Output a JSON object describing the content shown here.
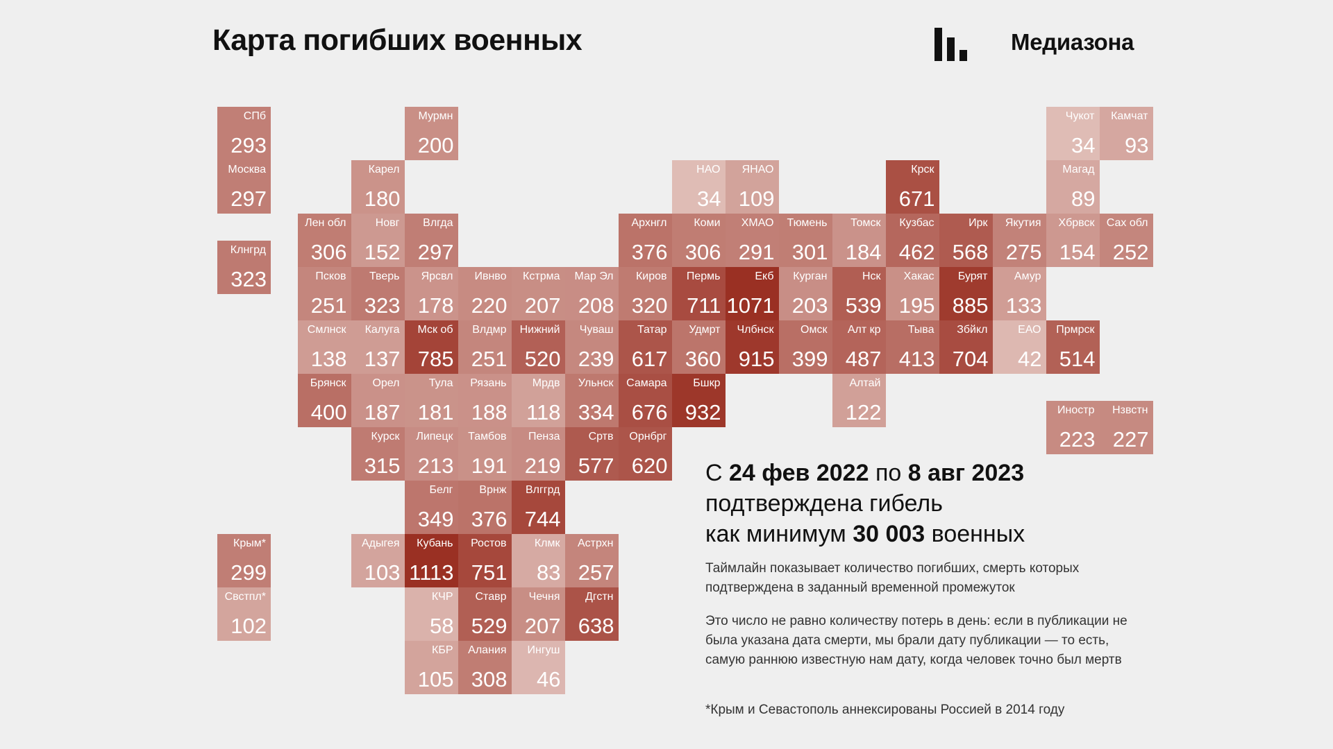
{
  "header": {
    "title": "Карта погибших военных",
    "brand": "Медиазона"
  },
  "summary": {
    "prefix": "С",
    "date_from": "24 фев 2022",
    "mid": "по",
    "date_to": "8 авг 2023",
    "line2": "подтверждена гибель",
    "line3_prefix": "как минимум",
    "total": "30 003",
    "line3_suffix": "военных"
  },
  "notes": {
    "timeline": "Таймлайн показывает количество погибших, смерть которых подтверждена в заданный временной промежуток",
    "explanation": "Это число не равно количеству потерь в день: если в публикации не была указана дата смерти, мы брали дату публикации — то есть, самую раннюю известную нам дату, когда человек точно был мертв",
    "footnote": "*Крым и Севастополь аннексированы Россией в 2014 году"
  },
  "colors": {
    "min": "#eedbd6",
    "max": "#9a3023",
    "text": "#ffffff"
  },
  "regions": [
    {
      "label": "СПб",
      "value": 293,
      "col": 0,
      "row": 0
    },
    {
      "label": "Москва",
      "value": 297,
      "col": 0,
      "row": 1
    },
    {
      "label": "Клнгрд",
      "value": 323,
      "col": 0,
      "row": 2.5
    },
    {
      "label": "Крым*",
      "value": 299,
      "col": 0,
      "row": 8
    },
    {
      "label": "Свстпл*",
      "value": 102,
      "col": 0,
      "row": 9
    },
    {
      "label": "Мурмн",
      "value": 200,
      "col": 3.5,
      "row": 0
    },
    {
      "label": "Карел",
      "value": 180,
      "col": 2.5,
      "row": 1
    },
    {
      "label": "Лен обл",
      "value": 306,
      "col": 1.5,
      "row": 2
    },
    {
      "label": "Новг",
      "value": 152,
      "col": 2.5,
      "row": 2
    },
    {
      "label": "Влгда",
      "value": 297,
      "col": 3.5,
      "row": 2
    },
    {
      "label": "Псков",
      "value": 251,
      "col": 1.5,
      "row": 3
    },
    {
      "label": "Тверь",
      "value": 323,
      "col": 2.5,
      "row": 3
    },
    {
      "label": "Ярсвл",
      "value": 178,
      "col": 3.5,
      "row": 3
    },
    {
      "label": "Ивнво",
      "value": 220,
      "col": 4.5,
      "row": 3
    },
    {
      "label": "Кстрма",
      "value": 207,
      "col": 5.5,
      "row": 3
    },
    {
      "label": "Мар Эл",
      "value": 208,
      "col": 6.5,
      "row": 3
    },
    {
      "label": "Смлнск",
      "value": 138,
      "col": 1.5,
      "row": 4
    },
    {
      "label": "Калуга",
      "value": 137,
      "col": 2.5,
      "row": 4
    },
    {
      "label": "Мск об",
      "value": 785,
      "col": 3.5,
      "row": 4
    },
    {
      "label": "Влдмр",
      "value": 251,
      "col": 4.5,
      "row": 4
    },
    {
      "label": "Нижний",
      "value": 520,
      "col": 5.5,
      "row": 4
    },
    {
      "label": "Чуваш",
      "value": 239,
      "col": 6.5,
      "row": 4
    },
    {
      "label": "Брянск",
      "value": 400,
      "col": 1.5,
      "row": 5
    },
    {
      "label": "Орел",
      "value": 187,
      "col": 2.5,
      "row": 5
    },
    {
      "label": "Тула",
      "value": 181,
      "col": 3.5,
      "row": 5
    },
    {
      "label": "Рязань",
      "value": 188,
      "col": 4.5,
      "row": 5
    },
    {
      "label": "Мрдв",
      "value": 118,
      "col": 5.5,
      "row": 5
    },
    {
      "label": "Ульнск",
      "value": 334,
      "col": 6.5,
      "row": 5
    },
    {
      "label": "Курск",
      "value": 315,
      "col": 2.5,
      "row": 6
    },
    {
      "label": "Липецк",
      "value": 213,
      "col": 3.5,
      "row": 6
    },
    {
      "label": "Тамбов",
      "value": 191,
      "col": 4.5,
      "row": 6
    },
    {
      "label": "Пенза",
      "value": 219,
      "col": 5.5,
      "row": 6
    },
    {
      "label": "Сртв",
      "value": 577,
      "col": 6.5,
      "row": 6
    },
    {
      "label": "Орнбрг",
      "value": 620,
      "col": 7.5,
      "row": 6
    },
    {
      "label": "Белг",
      "value": 349,
      "col": 3.5,
      "row": 7
    },
    {
      "label": "Врнж",
      "value": 376,
      "col": 4.5,
      "row": 7
    },
    {
      "label": "Влггрд",
      "value": 744,
      "col": 5.5,
      "row": 7
    },
    {
      "label": "Адыгея",
      "value": 103,
      "col": 2.5,
      "row": 8
    },
    {
      "label": "Кубань",
      "value": 1113,
      "col": 3.5,
      "row": 8
    },
    {
      "label": "Ростов",
      "value": 751,
      "col": 4.5,
      "row": 8
    },
    {
      "label": "Клмк",
      "value": 83,
      "col": 5.5,
      "row": 8
    },
    {
      "label": "Астрхн",
      "value": 257,
      "col": 6.5,
      "row": 8
    },
    {
      "label": "КЧР",
      "value": 58,
      "col": 3.5,
      "row": 9
    },
    {
      "label": "Ставр",
      "value": 529,
      "col": 4.5,
      "row": 9
    },
    {
      "label": "Чечня",
      "value": 207,
      "col": 5.5,
      "row": 9
    },
    {
      "label": "Дгстн",
      "value": 638,
      "col": 6.5,
      "row": 9
    },
    {
      "label": "КБР",
      "value": 105,
      "col": 3.5,
      "row": 10
    },
    {
      "label": "Алания",
      "value": 308,
      "col": 4.5,
      "row": 10
    },
    {
      "label": "Ингуш",
      "value": 46,
      "col": 5.5,
      "row": 10
    },
    {
      "label": "Архнгл",
      "value": 376,
      "col": 7.5,
      "row": 2
    },
    {
      "label": "Киров",
      "value": 320,
      "col": 7.5,
      "row": 3
    },
    {
      "label": "Татар",
      "value": 617,
      "col": 7.5,
      "row": 4
    },
    {
      "label": "Самара",
      "value": 676,
      "col": 7.5,
      "row": 5
    },
    {
      "label": "НАО",
      "value": 34,
      "col": 8.5,
      "row": 1
    },
    {
      "label": "Коми",
      "value": 306,
      "col": 8.5,
      "row": 2
    },
    {
      "label": "Пермь",
      "value": 711,
      "col": 8.5,
      "row": 3
    },
    {
      "label": "Удмрт",
      "value": 360,
      "col": 8.5,
      "row": 4
    },
    {
      "label": "Бшкр",
      "value": 932,
      "col": 8.5,
      "row": 5
    },
    {
      "label": "ЯНАО",
      "value": 109,
      "col": 9.5,
      "row": 1
    },
    {
      "label": "ХМАО",
      "value": 291,
      "col": 9.5,
      "row": 2
    },
    {
      "label": "Екб",
      "value": 1071,
      "col": 9.5,
      "row": 3
    },
    {
      "label": "Члбнск",
      "value": 915,
      "col": 9.5,
      "row": 4
    },
    {
      "label": "Тюмень",
      "value": 301,
      "col": 10.5,
      "row": 2
    },
    {
      "label": "Курган",
      "value": 203,
      "col": 10.5,
      "row": 3
    },
    {
      "label": "Омск",
      "value": 399,
      "col": 10.5,
      "row": 4
    },
    {
      "label": "Томск",
      "value": 184,
      "col": 11.5,
      "row": 2
    },
    {
      "label": "Нск",
      "value": 539,
      "col": 11.5,
      "row": 3
    },
    {
      "label": "Алт кр",
      "value": 487,
      "col": 11.5,
      "row": 4
    },
    {
      "label": "Алтай",
      "value": 122,
      "col": 11.5,
      "row": 5
    },
    {
      "label": "Крск",
      "value": 671,
      "col": 12.5,
      "row": 1
    },
    {
      "label": "Кузбас",
      "value": 462,
      "col": 12.5,
      "row": 2
    },
    {
      "label": "Хакас",
      "value": 195,
      "col": 12.5,
      "row": 3
    },
    {
      "label": "Тыва",
      "value": 413,
      "col": 12.5,
      "row": 4
    },
    {
      "label": "Ирк",
      "value": 568,
      "col": 13.5,
      "row": 2
    },
    {
      "label": "Бурят",
      "value": 885,
      "col": 13.5,
      "row": 3
    },
    {
      "label": "Збйкл",
      "value": 704,
      "col": 13.5,
      "row": 4
    },
    {
      "label": "Якутия",
      "value": 275,
      "col": 14.5,
      "row": 2
    },
    {
      "label": "Амур",
      "value": 133,
      "col": 14.5,
      "row": 3
    },
    {
      "label": "ЕАО",
      "value": 42,
      "col": 14.5,
      "row": 4
    },
    {
      "label": "Чукот",
      "value": 34,
      "col": 15.5,
      "row": 0
    },
    {
      "label": "Магад",
      "value": 89,
      "col": 15.5,
      "row": 1
    },
    {
      "label": "Хбрвск",
      "value": 154,
      "col": 15.5,
      "row": 2
    },
    {
      "label": "Прмрск",
      "value": 514,
      "col": 15.5,
      "row": 4
    },
    {
      "label": "Иностр",
      "value": 223,
      "col": 15.5,
      "row": 5.5
    },
    {
      "label": "Камчат",
      "value": 93,
      "col": 16.5,
      "row": 0
    },
    {
      "label": "Сах обл",
      "value": 252,
      "col": 16.5,
      "row": 2
    },
    {
      "label": "Нзвстн",
      "value": 227,
      "col": 16.5,
      "row": 5.5
    }
  ]
}
